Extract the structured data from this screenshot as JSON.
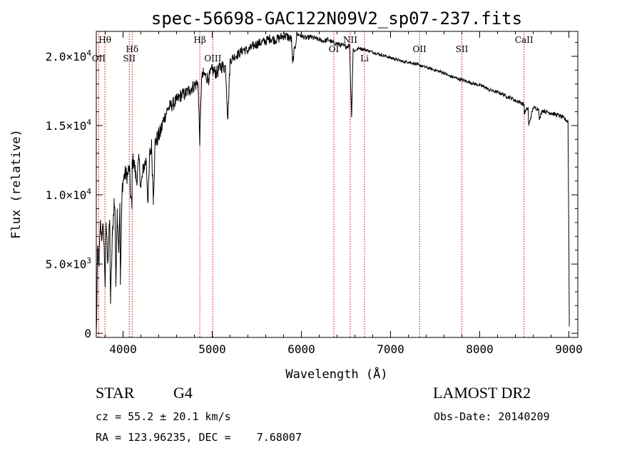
{
  "chart_data": {
    "type": "line",
    "title": "spec-56698-GAC122N09V2_sp07-237.fits",
    "xlabel": "Wavelength (Å)",
    "ylabel": "Flux (relative)",
    "xlim": [
      3700,
      9100
    ],
    "ylim": [
      -300,
      21800
    ],
    "x_ticks": [
      {
        "value": 4000,
        "label": "4000"
      },
      {
        "value": 5000,
        "label": "5000"
      },
      {
        "value": 6000,
        "label": "6000"
      },
      {
        "value": 7000,
        "label": "7000"
      },
      {
        "value": 8000,
        "label": "8000"
      },
      {
        "value": 9000,
        "label": "9000"
      }
    ],
    "y_ticks": [
      {
        "value": 0,
        "mant": "0",
        "exp": ""
      },
      {
        "value": 5000,
        "mant": "5.0×10",
        "exp": "3"
      },
      {
        "value": 10000,
        "mant": "1.0×10",
        "exp": "4"
      },
      {
        "value": 15000,
        "mant": "1.5×10",
        "exp": "4"
      },
      {
        "value": 20000,
        "mant": "2.0×10",
        "exp": "4"
      }
    ],
    "line_color": "#000000",
    "marker_color": "#cc0000",
    "series": [
      {
        "x": [
          3700,
          3705,
          3715,
          3730,
          3745,
          3760,
          3780,
          3800,
          3810,
          3830,
          3850,
          3860,
          3880,
          3900,
          3910,
          3920,
          3935,
          3950,
          3965,
          3970,
          3990,
          4000,
          4020,
          4050,
          4070,
          4085,
          4100,
          4102,
          4120,
          4150,
          4180,
          4200,
          4230,
          4260,
          4280,
          4300,
          4320,
          4340,
          4360,
          4380,
          4420,
          4460,
          4500,
          4550,
          4600,
          4650,
          4700,
          4750,
          4800,
          4840,
          4861,
          4880,
          4900,
          4920,
          4960,
          5000,
          5050,
          5100,
          5150,
          5175,
          5200,
          5250,
          5300,
          5350,
          5400,
          5450,
          5500,
          5550,
          5600,
          5650,
          5700,
          5750,
          5800,
          5850,
          5890,
          5900,
          5950,
          6000,
          6050,
          6100,
          6150,
          6200,
          6250,
          6300,
          6350,
          6400,
          6450,
          6500,
          6540,
          6563,
          6580,
          6600,
          6650,
          6700,
          6750,
          6800,
          6850,
          6900,
          6950,
          7000,
          7050,
          7100,
          7150,
          7200,
          7250,
          7300,
          7350,
          7400,
          7450,
          7500,
          7550,
          7600,
          7650,
          7700,
          7750,
          7800,
          7850,
          7900,
          7950,
          8000,
          8050,
          8100,
          8150,
          8200,
          8250,
          8300,
          8350,
          8400,
          8450,
          8498,
          8500,
          8542,
          8550,
          8600,
          8662,
          8670,
          8700,
          8750,
          8800,
          8850,
          8900,
          8950,
          8990,
          9000,
          9005
        ],
        "y": [
          0,
          1500,
          6200,
          4800,
          8000,
          7000,
          7600,
          3500,
          8000,
          5200,
          8200,
          2200,
          7000,
          9500,
          8700,
          3500,
          9000,
          6000,
          9400,
          3500,
          10500,
          11000,
          11500,
          11400,
          12000,
          10000,
          9000,
          12300,
          12500,
          11000,
          12500,
          10500,
          12000,
          12500,
          9400,
          13000,
          13500,
          9800,
          13800,
          14000,
          14500,
          15500,
          16200,
          16500,
          16800,
          17200,
          17300,
          17600,
          17900,
          18100,
          13800,
          18300,
          18700,
          18600,
          18400,
          19000,
          18800,
          19300,
          19200,
          15500,
          19700,
          20000,
          20200,
          20500,
          20400,
          20700,
          20900,
          21000,
          21100,
          21300,
          21200,
          21300,
          21500,
          21400,
          21200,
          19500,
          21600,
          21500,
          21300,
          21400,
          21300,
          21200,
          21100,
          21200,
          21000,
          20900,
          20800,
          20700,
          20800,
          15600,
          20500,
          20400,
          20600,
          20500,
          20400,
          20300,
          20200,
          20100,
          20000,
          19900,
          19800,
          19700,
          19600,
          19600,
          19500,
          19400,
          19300,
          19200,
          19100,
          19000,
          18900,
          18800,
          18600,
          18500,
          18400,
          18300,
          18200,
          18100,
          18000,
          17900,
          17800,
          17600,
          17500,
          17400,
          17300,
          17100,
          17000,
          16800,
          16700,
          16500,
          15900,
          16300,
          15000,
          16300,
          16200,
          15400,
          16100,
          16000,
          15900,
          15800,
          15700,
          15500,
          15300,
          6300,
          500
        ],
        "noise": [
          [
            3700,
            4460,
            650
          ],
          [
            4460,
            5200,
            500
          ],
          [
            5200,
            5950,
            350
          ],
          [
            5950,
            6600,
            180
          ],
          [
            6600,
            7500,
            110
          ],
          [
            7500,
            8300,
            120
          ],
          [
            8300,
            8995,
            150
          ]
        ]
      }
    ],
    "line_markers": [
      {
        "name": "Hθ",
        "x": 3797,
        "row": 1
      },
      {
        "name": "OII",
        "x": 3727,
        "row": 2
      },
      {
        "name": "Hδ",
        "x": 4102,
        "row": 1.5
      },
      {
        "name": "SII",
        "x": 4070,
        "row": 2
      },
      {
        "name": "Hβ",
        "x": 4861,
        "row": 1
      },
      {
        "name": "OIII",
        "x": 5007,
        "row": 2
      },
      {
        "name": "OI",
        "x": 6364,
        "row": 1.5
      },
      {
        "name": "NII",
        "x": 6548,
        "row": 1
      },
      {
        "name": "Li",
        "x": 6708,
        "row": 2
      },
      {
        "name": "OII",
        "x": 7325,
        "row": 1.5
      },
      {
        "name": "SII",
        "x": 7800,
        "row": 1.5
      },
      {
        "name": "CaII",
        "x": 8498,
        "row": 1
      }
    ]
  },
  "info": {
    "object_class": "STAR",
    "subclass": "G4",
    "survey": "LAMOST DR2",
    "cz": "cz = 55.2 ± 20.1 km/s",
    "obs_date": "Obs-Date: 20140209",
    "radec": "RA = 123.96235, DEC =    7.68007"
  }
}
